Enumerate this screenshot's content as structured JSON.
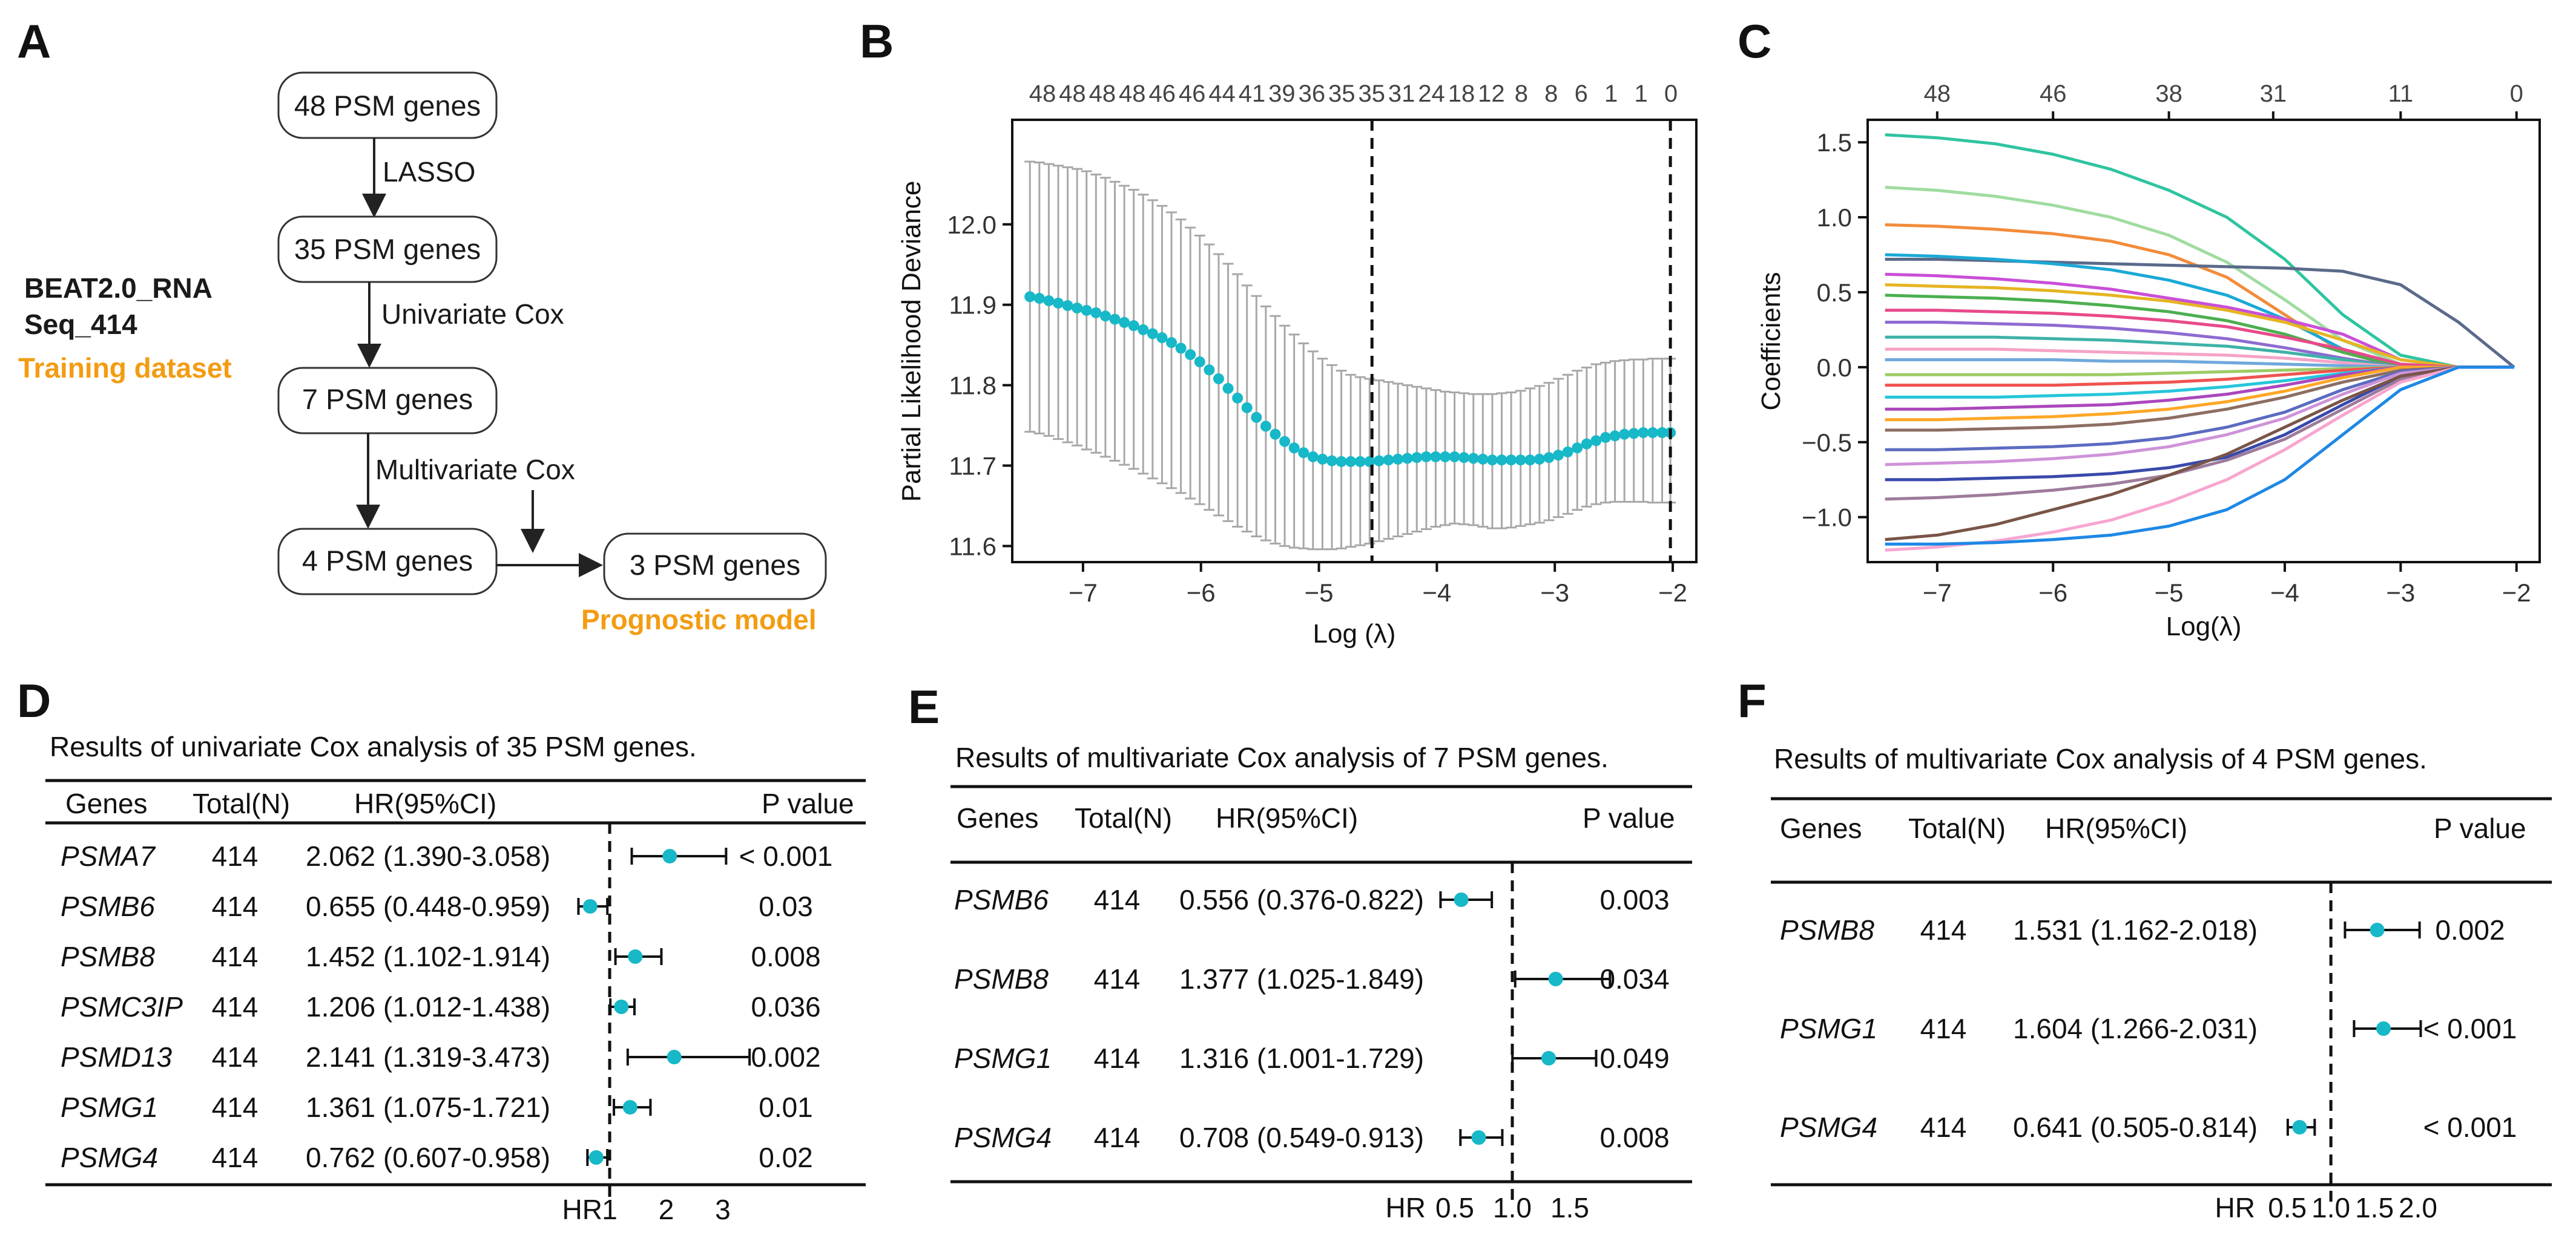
{
  "panels": {
    "a": "A",
    "b": "B",
    "c": "C",
    "d": "D",
    "e": "E",
    "f": "F"
  },
  "flow": {
    "boxes": [
      "48 PSM genes",
      "35 PSM genes",
      "7 PSM genes",
      "4 PSM genes",
      "3 PSM genes"
    ],
    "steps": [
      "LASSO",
      "Univariate Cox",
      "Multivariate Cox"
    ],
    "dataset_line1": "BEAT2.0_RNA",
    "dataset_line2": "Seq_414",
    "dataset_label": "Training dataset",
    "model_label": "Prognostic model"
  },
  "chart_data": [
    {
      "id": "B",
      "type": "scatter",
      "title": "",
      "xlabel": "Log (λ)",
      "ylabel": "Partial Likelihood Deviance",
      "xlim": [
        -7.6,
        -1.8
      ],
      "ylim": [
        11.58,
        12.13
      ],
      "xticks": [
        -7,
        -6,
        -5,
        -4,
        -3,
        -2
      ],
      "yticks": [
        11.6,
        11.7,
        11.8,
        11.9,
        12.0
      ],
      "top_ticks": [
        "48",
        "48",
        "48",
        "48",
        "46",
        "46",
        "44",
        "41",
        "39",
        "36",
        "35",
        "35",
        "31",
        "24",
        "18",
        "12",
        "8",
        "8",
        "6",
        "1",
        "1",
        "0"
      ],
      "vlines": [
        -4.55,
        -2.02
      ],
      "x": [
        -7.45,
        -7.37,
        -7.29,
        -7.21,
        -7.13,
        -7.05,
        -6.97,
        -6.89,
        -6.81,
        -6.73,
        -6.65,
        -6.57,
        -6.49,
        -6.41,
        -6.33,
        -6.25,
        -6.17,
        -6.09,
        -6.01,
        -5.93,
        -5.85,
        -5.77,
        -5.69,
        -5.61,
        -5.53,
        -5.45,
        -5.37,
        -5.29,
        -5.21,
        -5.13,
        -5.05,
        -4.97,
        -4.89,
        -4.81,
        -4.73,
        -4.65,
        -4.57,
        -4.49,
        -4.41,
        -4.33,
        -4.25,
        -4.17,
        -4.09,
        -4.01,
        -3.93,
        -3.85,
        -3.77,
        -3.69,
        -3.61,
        -3.53,
        -3.45,
        -3.37,
        -3.29,
        -3.21,
        -3.13,
        -3.05,
        -2.97,
        -2.89,
        -2.81,
        -2.73,
        -2.65,
        -2.57,
        -2.49,
        -2.41,
        -2.33,
        -2.25,
        -2.17,
        -2.09,
        -2.02
      ],
      "mean": [
        11.91,
        11.908,
        11.905,
        11.902,
        11.899,
        11.896,
        11.893,
        11.89,
        11.886,
        11.882,
        11.878,
        11.874,
        11.869,
        11.864,
        11.859,
        11.853,
        11.846,
        11.838,
        11.829,
        11.819,
        11.808,
        11.796,
        11.784,
        11.772,
        11.76,
        11.749,
        11.739,
        11.73,
        11.722,
        11.716,
        11.711,
        11.708,
        11.706,
        11.705,
        11.705,
        11.705,
        11.705,
        11.706,
        11.707,
        11.708,
        11.709,
        11.71,
        11.711,
        11.711,
        11.711,
        11.711,
        11.71,
        11.709,
        11.708,
        11.707,
        11.707,
        11.707,
        11.707,
        11.707,
        11.708,
        11.71,
        11.713,
        11.717,
        11.722,
        11.727,
        11.731,
        11.735,
        11.737,
        11.739,
        11.74,
        11.741,
        11.741,
        11.741,
        11.741
      ],
      "upper": [
        12.078,
        12.077,
        12.075,
        12.073,
        12.071,
        12.069,
        12.066,
        12.062,
        12.058,
        12.053,
        12.048,
        12.043,
        12.037,
        12.03,
        12.023,
        12.015,
        12.006,
        11.996,
        11.986,
        11.975,
        11.963,
        11.951,
        11.938,
        11.924,
        11.911,
        11.898,
        11.886,
        11.874,
        11.863,
        11.852,
        11.842,
        11.833,
        11.825,
        11.818,
        11.813,
        11.81,
        11.808,
        11.806,
        11.804,
        11.802,
        11.8,
        11.798,
        11.796,
        11.794,
        11.792,
        11.791,
        11.79,
        11.789,
        11.789,
        11.789,
        11.79,
        11.791,
        11.793,
        11.796,
        11.799,
        11.803,
        11.808,
        11.813,
        11.818,
        11.822,
        11.826,
        11.828,
        11.83,
        11.831,
        11.832,
        11.832,
        11.833,
        11.833,
        11.833
      ],
      "lower": [
        11.742,
        11.74,
        11.737,
        11.733,
        11.729,
        11.725,
        11.72,
        11.716,
        11.711,
        11.706,
        11.701,
        11.696,
        11.69,
        11.684,
        11.678,
        11.672,
        11.666,
        11.659,
        11.652,
        11.645,
        11.638,
        11.631,
        11.624,
        11.618,
        11.612,
        11.607,
        11.603,
        11.6,
        11.598,
        11.597,
        11.596,
        11.596,
        11.596,
        11.597,
        11.599,
        11.601,
        11.603,
        11.606,
        11.609,
        11.612,
        11.615,
        11.618,
        11.621,
        11.624,
        11.626,
        11.628,
        11.627,
        11.626,
        11.624,
        11.622,
        11.622,
        11.623,
        11.625,
        11.627,
        11.629,
        11.632,
        11.636,
        11.64,
        11.645,
        11.649,
        11.652,
        11.654,
        11.655,
        11.655,
        11.655,
        11.655,
        11.654,
        11.654,
        11.654
      ]
    },
    {
      "id": "C",
      "type": "line",
      "title": "",
      "xlabel": "Log(λ)",
      "ylabel": "Coefficients",
      "xlim": [
        -7.6,
        -1.8
      ],
      "ylim": [
        -1.3,
        1.65
      ],
      "xticks": [
        -7,
        -6,
        -5,
        -4,
        -3,
        -2
      ],
      "yticks": [
        -1.0,
        -0.5,
        0.0,
        0.5,
        1.0,
        1.5
      ],
      "top_ticks": [
        "48",
        "46",
        "38",
        "31",
        "11",
        "0"
      ],
      "top_tick_x": [
        -7.0,
        -6.0,
        -5.0,
        -4.1,
        -3.0,
        -2.0
      ],
      "x": [
        -7.45,
        -7.0,
        -6.5,
        -6.0,
        -5.5,
        -5.0,
        -4.5,
        -4.0,
        -3.5,
        -3.0,
        -2.5,
        -2.02
      ],
      "series": [
        {
          "name": "g1",
          "color": "#2fc4a0",
          "values": [
            1.55,
            1.53,
            1.49,
            1.42,
            1.32,
            1.18,
            1.0,
            0.72,
            0.35,
            0.08,
            0.0,
            0.0
          ]
        },
        {
          "name": "g2",
          "color": "#9fdca0",
          "values": [
            1.2,
            1.18,
            1.14,
            1.08,
            1.0,
            0.88,
            0.7,
            0.45,
            0.18,
            0.02,
            0.0,
            0.0
          ]
        },
        {
          "name": "g3",
          "color": "#f28c3b",
          "values": [
            0.95,
            0.94,
            0.92,
            0.89,
            0.84,
            0.75,
            0.6,
            0.35,
            0.1,
            0.0,
            0.0,
            0.0
          ]
        },
        {
          "name": "g4",
          "color": "#5a6a8a",
          "values": [
            0.72,
            0.72,
            0.71,
            0.7,
            0.69,
            0.68,
            0.67,
            0.66,
            0.64,
            0.55,
            0.3,
            0.0
          ]
        },
        {
          "name": "g5",
          "color": "#1aa9d6",
          "values": [
            0.75,
            0.74,
            0.72,
            0.69,
            0.65,
            0.58,
            0.48,
            0.32,
            0.12,
            0.0,
            0.0,
            0.0
          ]
        },
        {
          "name": "g6",
          "color": "#c94fd8",
          "values": [
            0.62,
            0.61,
            0.59,
            0.56,
            0.52,
            0.46,
            0.4,
            0.32,
            0.22,
            0.05,
            0.0,
            0.0
          ]
        },
        {
          "name": "g7",
          "color": "#e6b422",
          "values": [
            0.55,
            0.54,
            0.53,
            0.51,
            0.48,
            0.44,
            0.38,
            0.3,
            0.18,
            0.05,
            0.0,
            0.0
          ]
        },
        {
          "name": "g8",
          "color": "#4caf50",
          "values": [
            0.48,
            0.47,
            0.46,
            0.44,
            0.41,
            0.37,
            0.31,
            0.22,
            0.1,
            0.0,
            0.0,
            0.0
          ]
        },
        {
          "name": "g9",
          "color": "#e84a8a",
          "values": [
            0.38,
            0.38,
            0.37,
            0.36,
            0.34,
            0.31,
            0.27,
            0.2,
            0.12,
            0.02,
            0.0,
            0.0
          ]
        },
        {
          "name": "g10",
          "color": "#8e6bd1",
          "values": [
            0.3,
            0.3,
            0.29,
            0.28,
            0.26,
            0.23,
            0.19,
            0.13,
            0.06,
            0.0,
            0.0,
            0.0
          ]
        },
        {
          "name": "g11",
          "color": "#3fb2a8",
          "values": [
            0.2,
            0.2,
            0.2,
            0.19,
            0.18,
            0.16,
            0.14,
            0.1,
            0.05,
            0.0,
            0.0,
            0.0
          ]
        },
        {
          "name": "g12",
          "color": "#f5a3c7",
          "values": [
            0.12,
            0.12,
            0.12,
            0.11,
            0.1,
            0.09,
            0.08,
            0.06,
            0.03,
            0.0,
            0.0,
            0.0
          ]
        },
        {
          "name": "g13",
          "color": "#6fa8dc",
          "values": [
            0.05,
            0.05,
            0.05,
            0.05,
            0.04,
            0.04,
            0.03,
            0.02,
            0.01,
            0.0,
            0.0,
            0.0
          ]
        },
        {
          "name": "g14",
          "color": "#9ccc65",
          "values": [
            -0.05,
            -0.05,
            -0.05,
            -0.05,
            -0.05,
            -0.04,
            -0.03,
            -0.02,
            -0.01,
            0.0,
            0.0,
            0.0
          ]
        },
        {
          "name": "g15",
          "color": "#ef5350",
          "values": [
            -0.12,
            -0.12,
            -0.12,
            -0.12,
            -0.11,
            -0.1,
            -0.08,
            -0.05,
            -0.02,
            0.0,
            0.0,
            0.0
          ]
        },
        {
          "name": "g16",
          "color": "#26c6da",
          "values": [
            -0.2,
            -0.2,
            -0.2,
            -0.19,
            -0.18,
            -0.16,
            -0.13,
            -0.09,
            -0.04,
            0.0,
            0.0,
            0.0
          ]
        },
        {
          "name": "g17",
          "color": "#ab47bc",
          "values": [
            -0.28,
            -0.28,
            -0.27,
            -0.26,
            -0.25,
            -0.22,
            -0.18,
            -0.12,
            -0.05,
            0.0,
            0.0,
            0.0
          ]
        },
        {
          "name": "g18",
          "color": "#ffa726",
          "values": [
            -0.35,
            -0.35,
            -0.34,
            -0.33,
            -0.31,
            -0.28,
            -0.23,
            -0.16,
            -0.07,
            0.0,
            0.0,
            0.0
          ]
        },
        {
          "name": "g19",
          "color": "#8d6e63",
          "values": [
            -0.42,
            -0.42,
            -0.41,
            -0.4,
            -0.38,
            -0.34,
            -0.28,
            -0.2,
            -0.1,
            -0.02,
            0.0,
            0.0
          ]
        },
        {
          "name": "g20",
          "color": "#5c6bc0",
          "values": [
            -0.55,
            -0.55,
            -0.54,
            -0.53,
            -0.51,
            -0.47,
            -0.4,
            -0.3,
            -0.15,
            -0.03,
            0.0,
            0.0
          ]
        },
        {
          "name": "g21",
          "color": "#ce93d8",
          "values": [
            -0.65,
            -0.64,
            -0.63,
            -0.61,
            -0.58,
            -0.53,
            -0.45,
            -0.34,
            -0.18,
            -0.04,
            0.0,
            0.0
          ]
        },
        {
          "name": "g22",
          "color": "#3949ab",
          "values": [
            -0.75,
            -0.75,
            -0.74,
            -0.73,
            -0.71,
            -0.67,
            -0.6,
            -0.45,
            -0.25,
            -0.06,
            0.0,
            0.0
          ]
        },
        {
          "name": "g23",
          "color": "#9e7b9b",
          "values": [
            -0.88,
            -0.87,
            -0.85,
            -0.82,
            -0.78,
            -0.72,
            -0.62,
            -0.48,
            -0.28,
            -0.08,
            0.0,
            0.0
          ]
        },
        {
          "name": "g24",
          "color": "#795548",
          "values": [
            -1.15,
            -1.12,
            -1.05,
            -0.95,
            -0.85,
            -0.72,
            -0.58,
            -0.4,
            -0.22,
            -0.06,
            0.0,
            0.0
          ]
        },
        {
          "name": "g25",
          "color": "#f8a5d0",
          "values": [
            -1.22,
            -1.2,
            -1.16,
            -1.1,
            -1.02,
            -0.9,
            -0.75,
            -0.55,
            -0.32,
            -0.1,
            0.0,
            0.0
          ]
        },
        {
          "name": "g26",
          "color": "#1e88e5",
          "values": [
            -1.18,
            -1.18,
            -1.17,
            -1.15,
            -1.12,
            -1.06,
            -0.95,
            -0.75,
            -0.45,
            -0.15,
            0.0,
            0.0
          ]
        }
      ]
    },
    {
      "id": "D",
      "type": "table",
      "title": "Results of univariate Cox analysis of 35 PSM genes.",
      "headers": [
        "Genes",
        "Total(N)",
        "HR(95%CI)",
        "P value"
      ],
      "axis_label": "HR",
      "axis_ticks": [
        "1",
        "2",
        "3"
      ],
      "axis_tick_vals": [
        1,
        2,
        3
      ],
      "xlim": [
        0.55,
        3.6
      ],
      "ref": 1,
      "rows": [
        {
          "gene": "PSMA7",
          "n": "414",
          "hr_text": "2.062 (1.390-3.058)",
          "p": "< 0.001",
          "hr": 2.062,
          "lo": 1.39,
          "hi": 3.058
        },
        {
          "gene": "PSMB6",
          "n": "414",
          "hr_text": "0.655 (0.448-0.959)",
          "p": "0.03",
          "hr": 0.655,
          "lo": 0.448,
          "hi": 0.959
        },
        {
          "gene": "PSMB8",
          "n": "414",
          "hr_text": "1.452 (1.102-1.914)",
          "p": "0.008",
          "hr": 1.452,
          "lo": 1.102,
          "hi": 1.914
        },
        {
          "gene": "PSMC3IP",
          "n": "414",
          "hr_text": "1.206 (1.012-1.438)",
          "p": "0.036",
          "hr": 1.206,
          "lo": 1.012,
          "hi": 1.438
        },
        {
          "gene": "PSMD13",
          "n": "414",
          "hr_text": "2.141 (1.319-3.473)",
          "p": "0.002",
          "hr": 2.141,
          "lo": 1.319,
          "hi": 3.473
        },
        {
          "gene": "PSMG1",
          "n": "414",
          "hr_text": "1.361 (1.075-1.721)",
          "p": "0.01",
          "hr": 1.361,
          "lo": 1.075,
          "hi": 1.721
        },
        {
          "gene": "PSMG4",
          "n": "414",
          "hr_text": "0.762 (0.607-0.958)",
          "p": "0.02",
          "hr": 0.762,
          "lo": 0.607,
          "hi": 0.958
        }
      ]
    },
    {
      "id": "E",
      "type": "table",
      "title": "Results of multivariate Cox analysis of 7 PSM genes.",
      "headers": [
        "Genes",
        "Total(N)",
        "HR(95%CI)",
        "P value"
      ],
      "axis_label": "HR",
      "axis_ticks": [
        "0.5",
        "1.0",
        "1.5"
      ],
      "axis_tick_vals": [
        0.5,
        1.0,
        1.5
      ],
      "xlim": [
        0.3,
        1.6
      ],
      "ref": 1,
      "rows": [
        {
          "gene": "PSMB6",
          "n": "414",
          "hr_text": "0.556 (0.376-0.822)",
          "p": "0.003",
          "hr": 0.556,
          "lo": 0.376,
          "hi": 0.822
        },
        {
          "gene": "PSMB8",
          "n": "414",
          "hr_text": "1.377 (1.025-1.849)",
          "p": "0.034",
          "hr": 1.377,
          "lo": 1.025,
          "hi": 1.849
        },
        {
          "gene": "PSMG1",
          "n": "414",
          "hr_text": "1.316 (1.001-1.729)",
          "p": "0.049",
          "hr": 1.316,
          "lo": 1.001,
          "hi": 1.729
        },
        {
          "gene": "PSMG4",
          "n": "414",
          "hr_text": "0.708 (0.549-0.913)",
          "p": "0.008",
          "hr": 0.708,
          "lo": 0.549,
          "hi": 0.913
        }
      ]
    },
    {
      "id": "F",
      "type": "table",
      "title": "Results of multivariate Cox analysis of 4 PSM genes.",
      "headers": [
        "Genes",
        "Total(N)",
        "HR(95%CI)",
        "P value"
      ],
      "axis_label": "HR",
      "axis_ticks": [
        "0.5",
        "1.0",
        "1.5",
        "2.0"
      ],
      "axis_tick_vals": [
        0.5,
        1.0,
        1.5,
        2.0
      ],
      "xlim": [
        0.2,
        2.25
      ],
      "ref": 1,
      "rows": [
        {
          "gene": "PSMB8",
          "n": "414",
          "hr_text": "1.531 (1.162-2.018)",
          "p": "0.002",
          "hr": 1.531,
          "lo": 1.162,
          "hi": 2.018
        },
        {
          "gene": "PSMG1",
          "n": "414",
          "hr_text": "1.604 (1.266-2.031)",
          "p": "< 0.001",
          "hr": 1.604,
          "lo": 1.266,
          "hi": 2.031
        },
        {
          "gene": "PSMG4",
          "n": "414",
          "hr_text": "0.641 (0.505-0.814)",
          "p": "< 0.001",
          "hr": 0.641,
          "lo": 0.505,
          "hi": 0.814
        }
      ]
    }
  ]
}
